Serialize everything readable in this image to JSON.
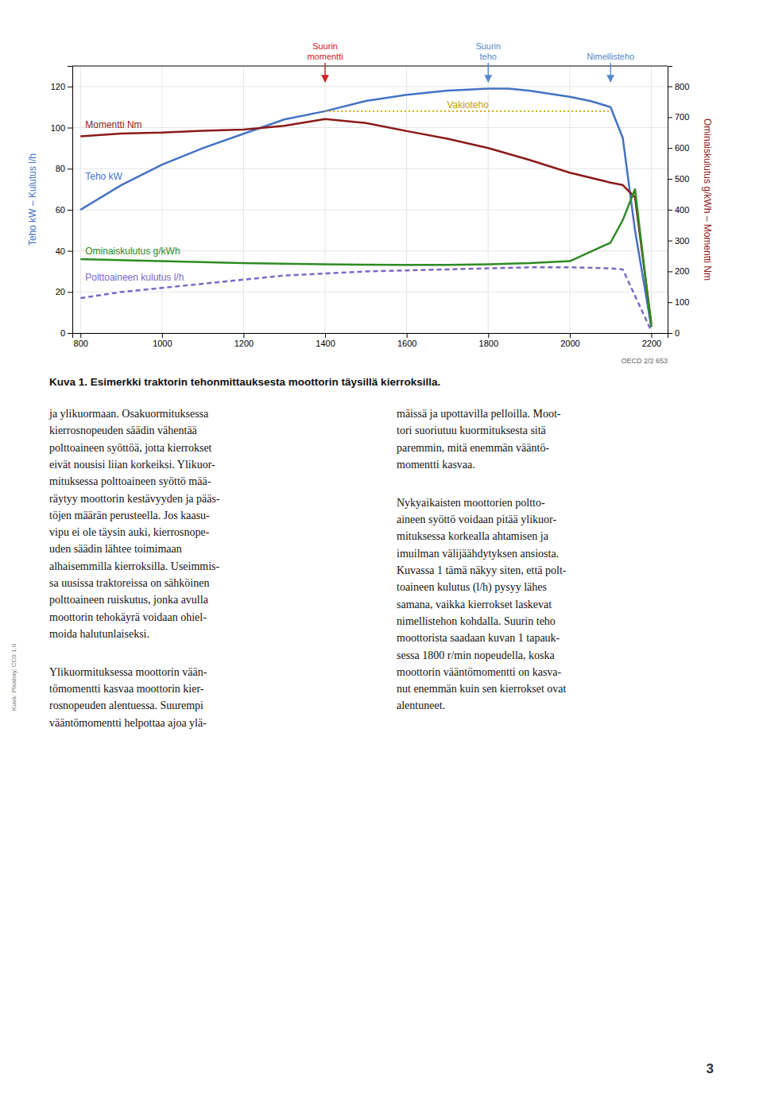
{
  "chart_data": {
    "type": "line",
    "title": "Kuva 1. Esimerkki traktorin tehonmittauksesta moottorin täysillä kierroksilla.",
    "ylabel": "Teho kW – Kulutus l/h",
    "y2label": "Ominaiskulutus g/kWh – Momentti Nm",
    "xlim": [
      780,
      2240
    ],
    "xticks": [
      800,
      1000,
      1200,
      1400,
      1600,
      1800,
      2000,
      2200
    ],
    "ylim": [
      0,
      130
    ],
    "yticks": [
      0,
      20,
      40,
      60,
      80,
      100,
      120
    ],
    "y2lim": [
      0,
      866
    ],
    "y2ticks": [
      0,
      100,
      200,
      300,
      400,
      500,
      600,
      700,
      800
    ],
    "grid": true,
    "series": [
      {
        "name": "Teho kW",
        "color": "#4472c4",
        "x": [
          800,
          900,
          1000,
          1100,
          1200,
          1300,
          1400,
          1500,
          1600,
          1700,
          1800,
          1850,
          1900,
          2000,
          2050,
          2100,
          2130,
          2160,
          2200
        ],
        "values": [
          60,
          72,
          82,
          90,
          97,
          104,
          108,
          113,
          116,
          118,
          119,
          119,
          118,
          115,
          113,
          110,
          95,
          50,
          3
        ]
      },
      {
        "name": "Momentti Nm",
        "color": "#8b1a1a",
        "axis": "y2",
        "x": [
          800,
          900,
          1000,
          1100,
          1200,
          1300,
          1400,
          1500,
          1600,
          1700,
          1800,
          1900,
          2000,
          2100,
          2130,
          2160,
          2200
        ],
        "values": [
          638,
          647,
          650,
          656,
          660,
          672,
          694,
          681,
          655,
          630,
          600,
          562,
          520,
          488,
          480,
          440,
          30
        ]
      },
      {
        "name": "Ominaiskulutus g/kWh",
        "color": "#2e8b22",
        "x": [
          800,
          900,
          1000,
          1100,
          1200,
          1300,
          1400,
          1500,
          1600,
          1700,
          1800,
          1900,
          2000,
          2100,
          2130,
          2160,
          2200
        ],
        "values": [
          36,
          35.5,
          35,
          34.5,
          34,
          33.8,
          33.5,
          33.3,
          33.2,
          33.2,
          33.5,
          34,
          35,
          44,
          55,
          70,
          3
        ]
      },
      {
        "name": "Polttoaineen kulutus l/h",
        "color": "#7b68c8",
        "line_style": "dashed",
        "x": [
          800,
          900,
          1000,
          1100,
          1200,
          1300,
          1400,
          1500,
          1600,
          1700,
          1800,
          1900,
          2000,
          2100,
          2130,
          2200
        ],
        "values": [
          17,
          20,
          22,
          24,
          26,
          28,
          29,
          30,
          30.5,
          31,
          31.5,
          32,
          32,
          31.5,
          31,
          1
        ]
      },
      {
        "name": "Vakioteho",
        "color": "#c8a000",
        "line_style": "dotted",
        "x": [
          1400,
          2100
        ],
        "values": [
          108,
          108
        ]
      }
    ],
    "annotations": [
      {
        "text": "Suurin\nmomentti",
        "x": 1400,
        "color": "#cc2222"
      },
      {
        "text": "Suurin\nteho",
        "x": 1800,
        "color": "#5588cc"
      },
      {
        "text": "Nimellisteho",
        "x": 2100,
        "color": "#5588cc"
      }
    ],
    "source_note": "OECD 2/2 653"
  },
  "body_columns": [
    [
      [
        "ja ylikuormaan. Osakuormituksessa",
        "kierrosnopeuden säädin vähentää",
        "polttoaineen syöttöä, jotta kierrokset",
        "eivät nousisi liian korkeiksi. Ylikuor-",
        "mituksessa polttoaineen syöttö mää-",
        "räytyy moottorin kestävyyden ja pääs-",
        "töjen määrän perusteella. Jos kaasu-",
        "vipu ei ole täysin auki, kierrosnope-",
        "uden säädin lähtee toimimaan",
        "alhaisemmilla kierroksilla. Useimmis-",
        "sa uusissa traktoreissa on sähköinen",
        "polttoaineen ruiskutus, jonka avulla",
        "moottorin tehokäyrä voidaan ohiel-",
        "moida halutunlaiseksi."
      ],
      [
        "Ylikuormituksessa moottorin vään-",
        "tömomentti kasvaa moottorin kier-",
        "rosnopeuden alentuessa. Suurempi",
        "vääntömomentti helpottaa ajoa ylä-"
      ]
    ],
    [
      [
        "mäissä ja upottavilla pelloilla. Moot-",
        "tori suoriutuu kuormituksesta sitä",
        "paremmin, mitä enemmän vääntö-",
        "momentti kasvaa."
      ],
      [
        "Nykyaikaisten moottorien poltto-",
        "aineen syöttö voidaan pitää ylikuor-",
        "mituksessa korkealla ahtamisen ja",
        "imuilman välijäähdytyksen ansiosta.",
        "Kuvassa 1 tämä näkyy siten, että polt-",
        "toaineen kulutus (l/h) pysyy lähes",
        "samana, vaikka kierrokset laskevat",
        "nimellistehon kohdalla. Suurin teho",
        "moottorista saadaan kuvan 1 tapauk-",
        "sessa 1800 r/min nopeudella, koska",
        "moottorin vääntömomentti on kasva-",
        "nut enemmän kuin sen kierrokset ovat",
        "alentuneet."
      ]
    ]
  ],
  "side_label": "Kuva: Pixabay, CC0 1.0",
  "page_number": "3"
}
